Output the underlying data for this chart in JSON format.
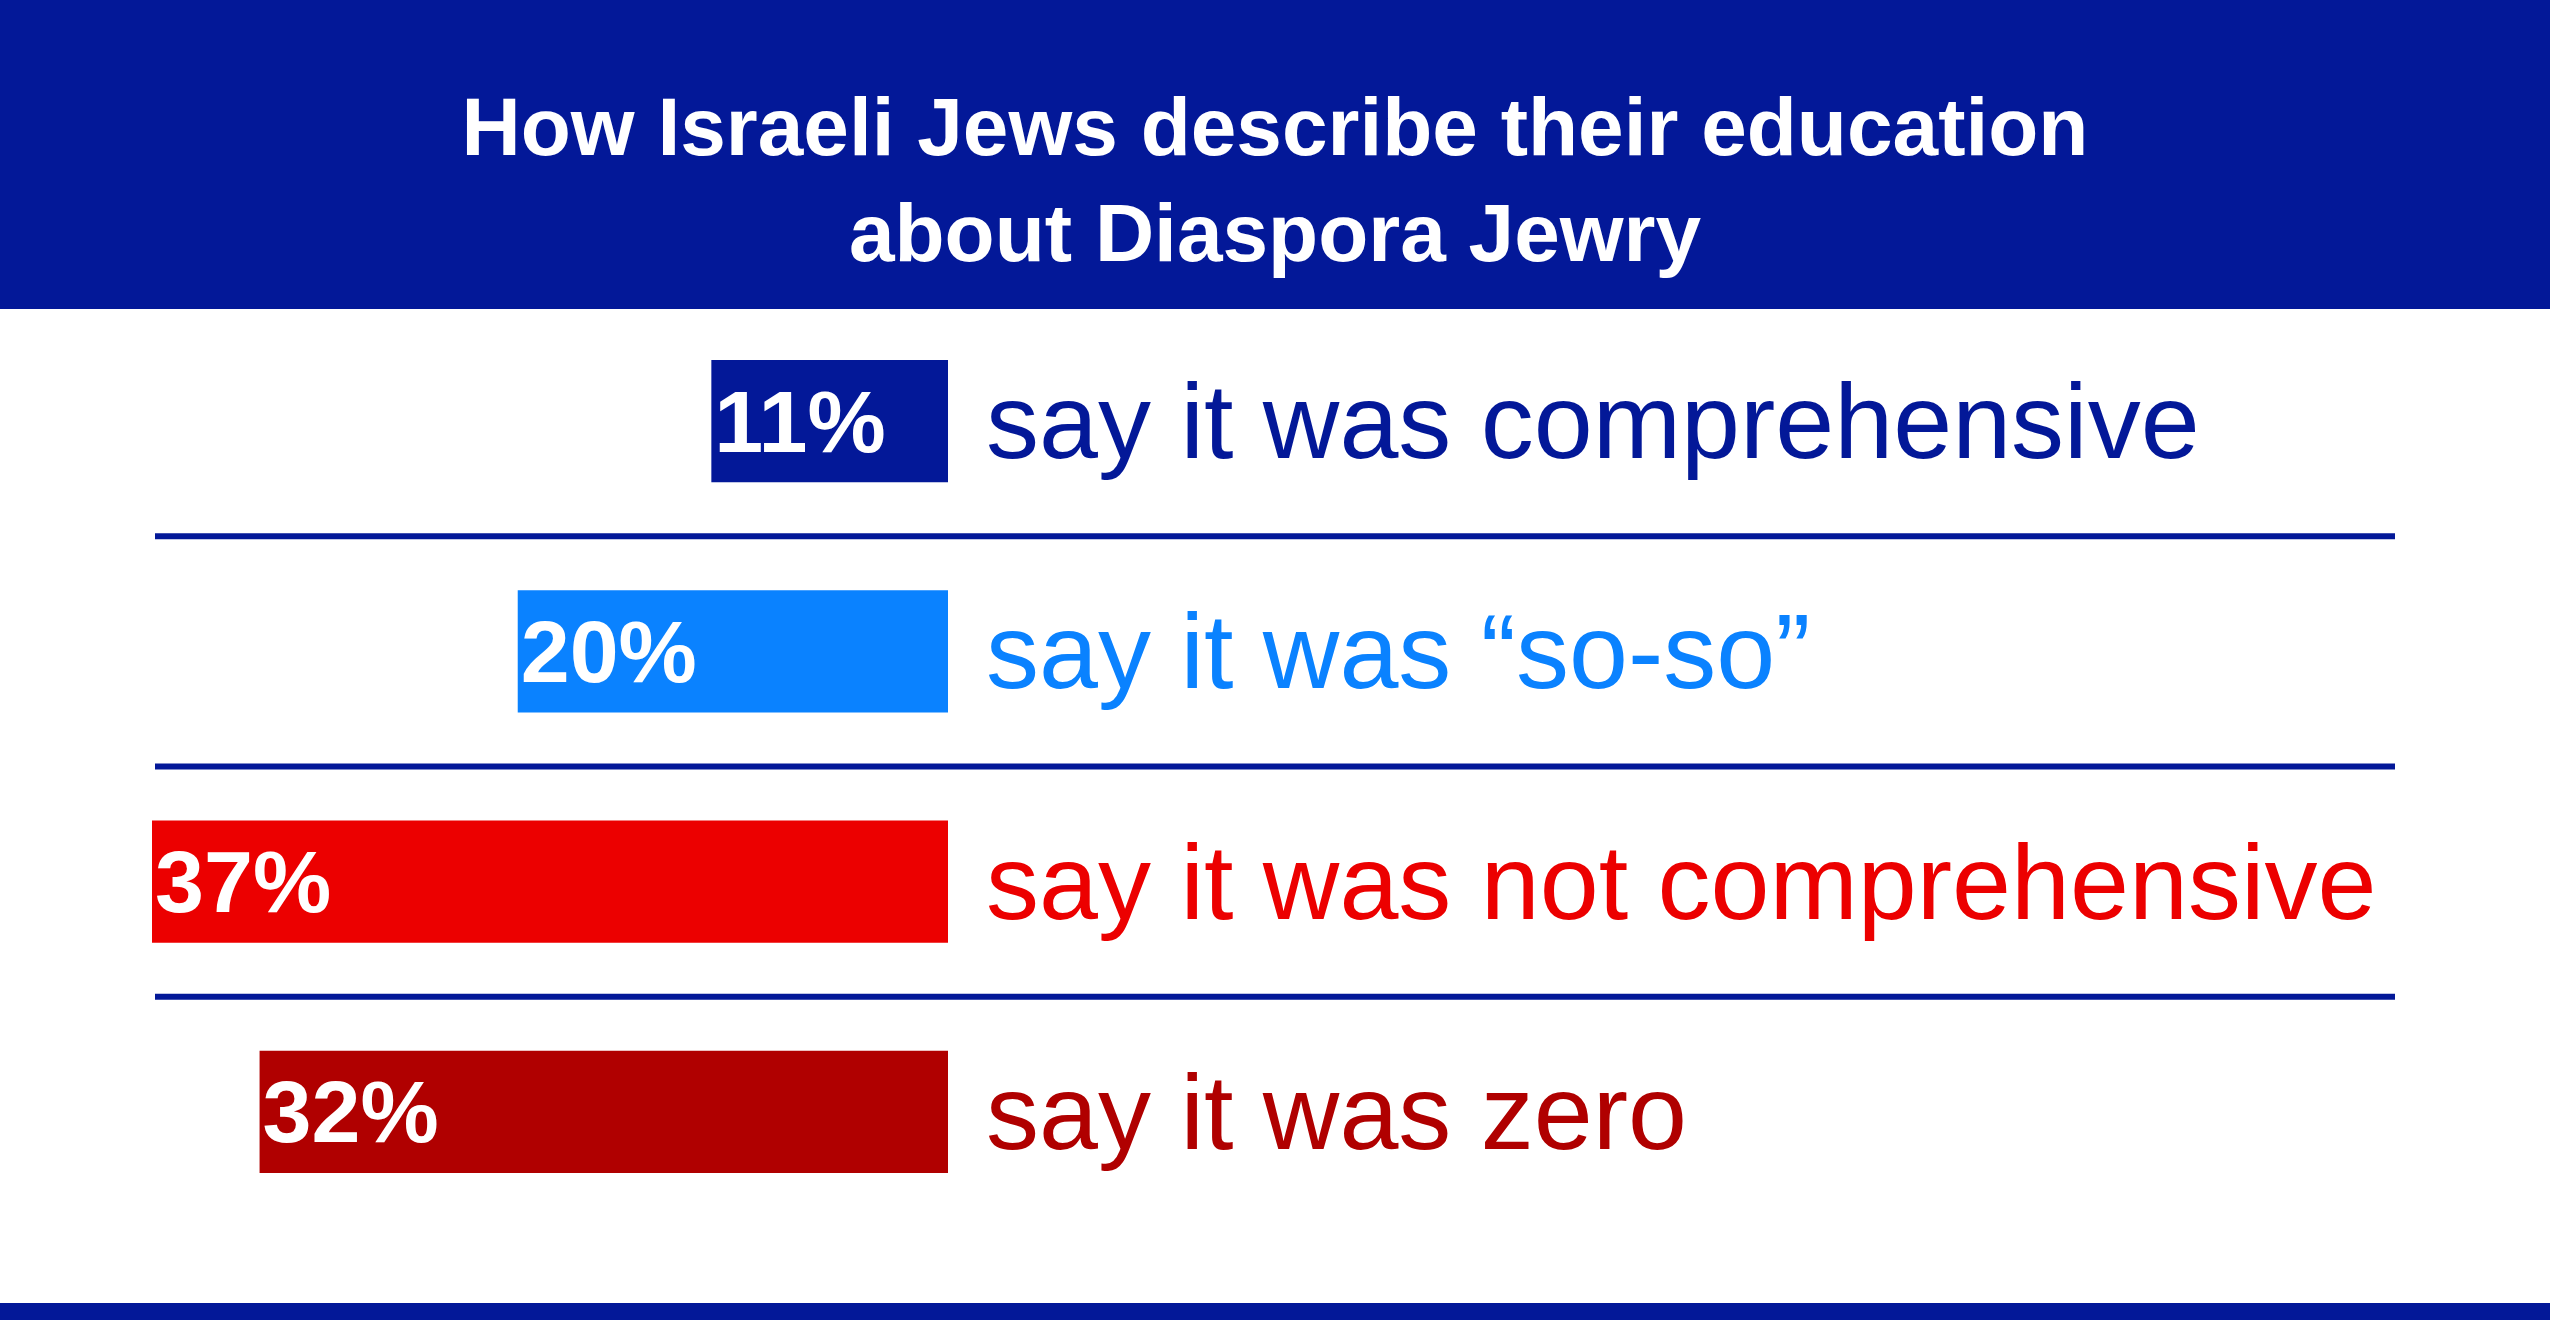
{
  "chart_data": {
    "type": "bar",
    "orientation": "horizontal",
    "title": "How Israeli Jews describe their education about Diaspora Jewry",
    "categories": [
      "say it was comprehensive",
      "say it was “so-so”",
      "say it was not comprehensive",
      "say it was zero"
    ],
    "values": [
      11,
      20,
      37,
      32
    ],
    "colors": [
      "#031898",
      "#0a82ff",
      "#ec0000",
      "#b00000"
    ],
    "value_labels": [
      "11%",
      "20%",
      "37%",
      "32%"
    ],
    "xlim": [
      37,
      0
    ],
    "grid": "y",
    "tick_labels": "y"
  }
}
